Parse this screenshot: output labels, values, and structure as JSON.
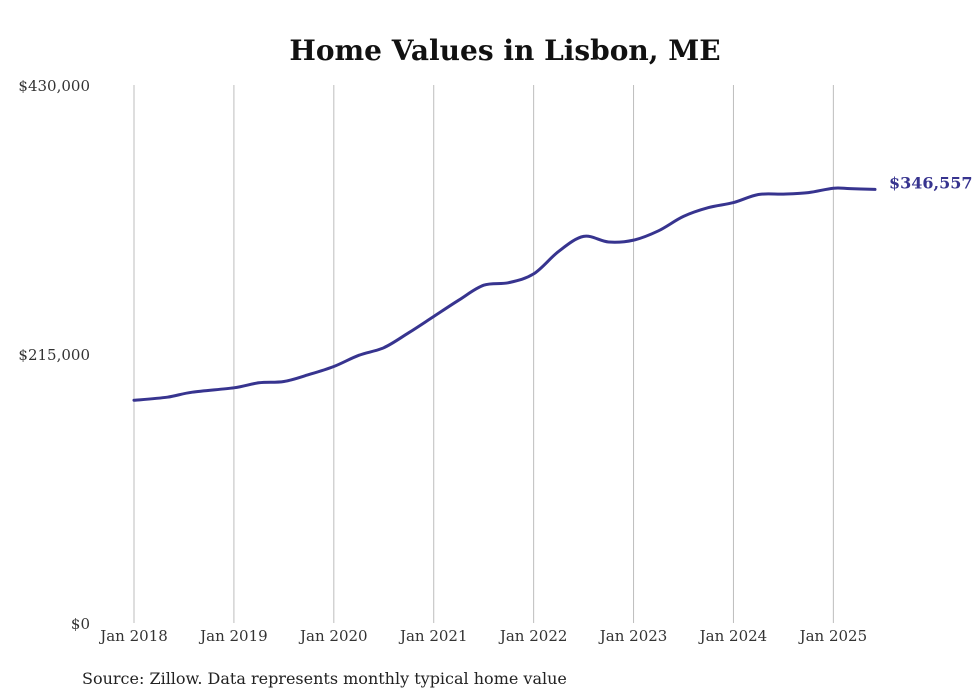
{
  "chart_data": {
    "type": "line",
    "title": "Home Values in Lisbon, ME",
    "xlabel": "",
    "ylabel": "",
    "ylim": [
      0,
      430000
    ],
    "xlim": [
      "2018-01",
      "2025-06"
    ],
    "y_ticks": [
      {
        "value": 0,
        "label": "$0"
      },
      {
        "value": 215000,
        "label": "$215,000"
      },
      {
        "value": 430000,
        "label": "$430,000"
      }
    ],
    "x_ticks": [
      {
        "value": "2018-01",
        "label": "Jan 2018"
      },
      {
        "value": "2019-01",
        "label": "Jan 2019"
      },
      {
        "value": "2020-01",
        "label": "Jan 2020"
      },
      {
        "value": "2021-01",
        "label": "Jan 2021"
      },
      {
        "value": "2022-01",
        "label": "Jan 2022"
      },
      {
        "value": "2023-01",
        "label": "Jan 2023"
      },
      {
        "value": "2024-01",
        "label": "Jan 2024"
      },
      {
        "value": "2025-01",
        "label": "Jan 2025"
      }
    ],
    "grid": "vertical",
    "legend": "none",
    "series": [
      {
        "color": "#37348f",
        "end_label": "$346,557",
        "points": [
          {
            "x": "2018-01",
            "y": 178000
          },
          {
            "x": "2018-05",
            "y": 180500
          },
          {
            "x": "2018-08",
            "y": 184500
          },
          {
            "x": "2019-01",
            "y": 188000
          },
          {
            "x": "2019-04",
            "y": 192000
          },
          {
            "x": "2019-07",
            "y": 193000
          },
          {
            "x": "2019-10",
            "y": 198500
          },
          {
            "x": "2020-01",
            "y": 205000
          },
          {
            "x": "2020-04",
            "y": 214000
          },
          {
            "x": "2020-07",
            "y": 220000
          },
          {
            "x": "2020-10",
            "y": 232000
          },
          {
            "x": "2021-01",
            "y": 245000
          },
          {
            "x": "2021-04",
            "y": 258000
          },
          {
            "x": "2021-07",
            "y": 270000
          },
          {
            "x": "2021-10",
            "y": 272000
          },
          {
            "x": "2022-01",
            "y": 279000
          },
          {
            "x": "2022-04",
            "y": 297000
          },
          {
            "x": "2022-07",
            "y": 309000
          },
          {
            "x": "2022-10",
            "y": 304500
          },
          {
            "x": "2023-01",
            "y": 306000
          },
          {
            "x": "2023-04",
            "y": 313500
          },
          {
            "x": "2023-07",
            "y": 325000
          },
          {
            "x": "2023-10",
            "y": 332000
          },
          {
            "x": "2024-01",
            "y": 336000
          },
          {
            "x": "2024-04",
            "y": 342500
          },
          {
            "x": "2024-07",
            "y": 342800
          },
          {
            "x": "2024-10",
            "y": 344000
          },
          {
            "x": "2025-01",
            "y": 347500
          },
          {
            "x": "2025-03",
            "y": 347200
          },
          {
            "x": "2025-06",
            "y": 346557
          }
        ]
      }
    ]
  },
  "source_note": "Source: Zillow. Data represents monthly typical home value"
}
